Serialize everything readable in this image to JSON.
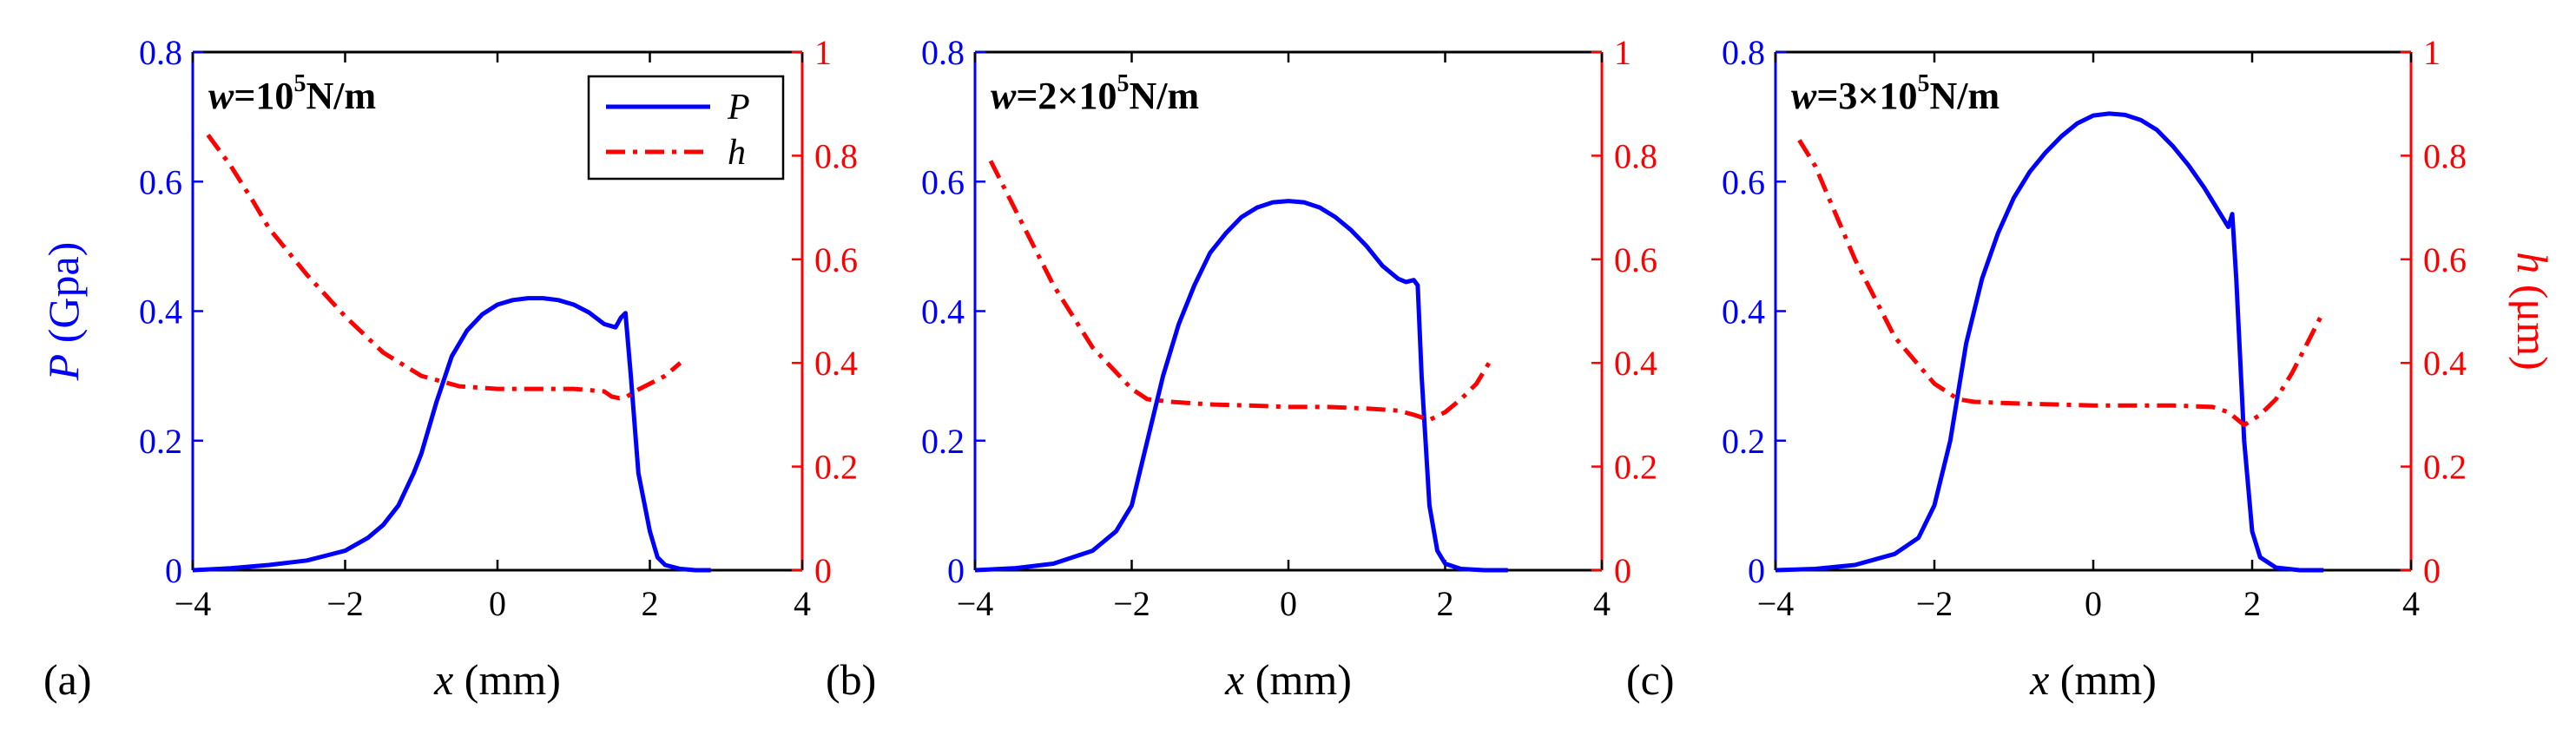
{
  "figure": {
    "left_axis_label": {
      "var": "P",
      "unit": " (Gpa)"
    },
    "right_axis_label": {
      "var": "h",
      "unit": " (μm)"
    },
    "legend": [
      {
        "name": "P",
        "color": "#0000ff",
        "style": "solid"
      },
      {
        "name": "h",
        "color": "#ff0000",
        "style": "dashdot"
      }
    ]
  },
  "chart_data": [
    {
      "type": "line",
      "panel_label": "(a)",
      "annotation": {
        "var": "w",
        "eq": "=10",
        "sup": "5",
        "unit": "N/m"
      },
      "xlabel": {
        "var": "x",
        "unit": " (mm)"
      },
      "xlim": [
        -4,
        4
      ],
      "xticks": [
        "−4",
        "−2",
        "0",
        "2",
        "4"
      ],
      "ylim_left": [
        0,
        0.8
      ],
      "yticks_left": [
        "0",
        "0.2",
        "0.4",
        "0.6",
        "0.8"
      ],
      "ylim_right": [
        0,
        1
      ],
      "yticks_right": [
        "0",
        "0.2",
        "0.4",
        "0.6",
        "0.8",
        "1"
      ],
      "series": [
        {
          "name": "P",
          "axis": "left",
          "color": "#0000ff",
          "x": [
            -4,
            -3.5,
            -3,
            -2.5,
            -2,
            -1.7,
            -1.5,
            -1.3,
            -1.1,
            -1.0,
            -0.8,
            -0.6,
            -0.4,
            -0.2,
            0,
            0.2,
            0.4,
            0.6,
            0.8,
            1.0,
            1.2,
            1.4,
            1.55,
            1.62,
            1.68,
            1.75,
            1.85,
            2.0,
            2.1,
            2.2,
            2.4,
            2.6,
            2.8
          ],
          "y": [
            0,
            0.003,
            0.008,
            0.015,
            0.03,
            0.05,
            0.07,
            0.1,
            0.15,
            0.18,
            0.26,
            0.33,
            0.37,
            0.395,
            0.41,
            0.417,
            0.42,
            0.42,
            0.417,
            0.41,
            0.398,
            0.38,
            0.375,
            0.39,
            0.397,
            0.3,
            0.15,
            0.06,
            0.02,
            0.008,
            0.002,
            0,
            0
          ]
        },
        {
          "name": "h",
          "axis": "right",
          "color": "#ff0000",
          "x": [
            -3.8,
            -3.5,
            -3.2,
            -3.0,
            -2.5,
            -2.0,
            -1.5,
            -1.0,
            -0.5,
            0,
            0.5,
            1.0,
            1.4,
            1.5,
            1.6,
            1.7,
            1.8,
            2.0,
            2.2,
            2.4
          ],
          "y": [
            0.84,
            0.78,
            0.71,
            0.66,
            0.57,
            0.49,
            0.42,
            0.375,
            0.355,
            0.35,
            0.35,
            0.35,
            0.345,
            0.335,
            0.332,
            0.335,
            0.345,
            0.36,
            0.375,
            0.4
          ]
        }
      ]
    },
    {
      "type": "line",
      "panel_label": "(b)",
      "annotation": {
        "var": "w",
        "eq": "=2×10",
        "sup": "5",
        "unit": "N/m"
      },
      "xlabel": {
        "var": "x",
        "unit": " (mm)"
      },
      "xlim": [
        -4,
        4
      ],
      "xticks": [
        "−4",
        "−2",
        "0",
        "2",
        "4"
      ],
      "ylim_left": [
        0,
        0.8
      ],
      "yticks_left": [
        "0",
        "0.2",
        "0.4",
        "0.6",
        "0.8"
      ],
      "ylim_right": [
        0,
        1
      ],
      "yticks_right": [
        "0",
        "0.2",
        "0.4",
        "0.6",
        "0.8",
        "1"
      ],
      "series": [
        {
          "name": "P",
          "axis": "left",
          "color": "#0000ff",
          "x": [
            -4,
            -3.5,
            -3,
            -2.5,
            -2.2,
            -2.0,
            -1.8,
            -1.6,
            -1.4,
            -1.2,
            -1.0,
            -0.8,
            -0.6,
            -0.4,
            -0.2,
            0,
            0.2,
            0.4,
            0.6,
            0.8,
            1.0,
            1.2,
            1.4,
            1.5,
            1.6,
            1.65,
            1.7,
            1.8,
            1.9,
            2.0,
            2.2,
            2.5,
            2.8
          ],
          "y": [
            0,
            0.003,
            0.01,
            0.03,
            0.06,
            0.1,
            0.2,
            0.3,
            0.38,
            0.44,
            0.49,
            0.52,
            0.545,
            0.56,
            0.568,
            0.57,
            0.568,
            0.56,
            0.545,
            0.525,
            0.5,
            0.47,
            0.45,
            0.445,
            0.448,
            0.44,
            0.3,
            0.1,
            0.03,
            0.01,
            0.002,
            0,
            0
          ]
        },
        {
          "name": "h",
          "axis": "right",
          "color": "#ff0000",
          "x": [
            -3.8,
            -3.5,
            -3.0,
            -2.5,
            -2.0,
            -1.8,
            -1.5,
            -1.0,
            -0.5,
            0,
            0.5,
            1.0,
            1.4,
            1.6,
            1.8,
            2.0,
            2.2,
            2.4,
            2.6
          ],
          "y": [
            0.79,
            0.7,
            0.55,
            0.43,
            0.35,
            0.33,
            0.325,
            0.32,
            0.318,
            0.315,
            0.315,
            0.312,
            0.308,
            0.3,
            0.29,
            0.305,
            0.33,
            0.36,
            0.41
          ]
        }
      ]
    },
    {
      "type": "line",
      "panel_label": "(c)",
      "annotation": {
        "var": "w",
        "eq": "=3×10",
        "sup": "5",
        "unit": "N/m"
      },
      "xlabel": {
        "var": "x",
        "unit": " (mm)"
      },
      "xlim": [
        -4,
        4
      ],
      "xticks": [
        "−4",
        "−2",
        "0",
        "2",
        "4"
      ],
      "ylim_left": [
        0,
        0.8
      ],
      "yticks_left": [
        "0",
        "0.2",
        "0.4",
        "0.6",
        "0.8"
      ],
      "ylim_right": [
        0,
        1
      ],
      "yticks_right": [
        "0",
        "0.2",
        "0.4",
        "0.6",
        "0.8",
        "1"
      ],
      "series": [
        {
          "name": "P",
          "axis": "left",
          "color": "#0000ff",
          "x": [
            -4,
            -3.5,
            -3,
            -2.5,
            -2.2,
            -2.0,
            -1.8,
            -1.6,
            -1.4,
            -1.2,
            -1.0,
            -0.8,
            -0.6,
            -0.4,
            -0.2,
            0,
            0.2,
            0.4,
            0.6,
            0.8,
            1.0,
            1.2,
            1.4,
            1.6,
            1.7,
            1.75,
            1.8,
            1.9,
            2.0,
            2.1,
            2.3,
            2.6,
            2.9
          ],
          "y": [
            0,
            0.002,
            0.008,
            0.025,
            0.05,
            0.1,
            0.2,
            0.35,
            0.45,
            0.52,
            0.575,
            0.615,
            0.645,
            0.67,
            0.69,
            0.702,
            0.705,
            0.703,
            0.695,
            0.68,
            0.655,
            0.625,
            0.59,
            0.55,
            0.53,
            0.55,
            0.45,
            0.2,
            0.06,
            0.02,
            0.004,
            0,
            0
          ]
        },
        {
          "name": "h",
          "axis": "right",
          "color": "#ff0000",
          "x": [
            -3.7,
            -3.5,
            -3.0,
            -2.5,
            -2.0,
            -1.7,
            -1.5,
            -1.0,
            -0.5,
            0,
            0.5,
            1.0,
            1.5,
            1.7,
            1.9,
            2.1,
            2.3,
            2.5,
            2.7,
            2.9
          ],
          "y": [
            0.83,
            0.78,
            0.6,
            0.45,
            0.36,
            0.33,
            0.325,
            0.322,
            0.32,
            0.318,
            0.318,
            0.318,
            0.315,
            0.305,
            0.28,
            0.3,
            0.33,
            0.38,
            0.44,
            0.5
          ]
        }
      ]
    }
  ]
}
